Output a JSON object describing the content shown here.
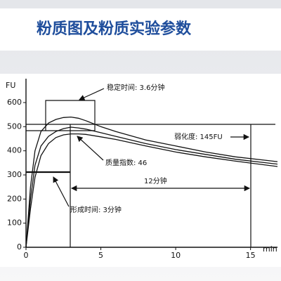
{
  "chart_data": {
    "type": "line",
    "title": "粉质图及粉质实验参数",
    "y_label": "FU",
    "x_label": "min",
    "x": [
      0,
      0.3,
      0.6,
      1,
      1.5,
      2,
      2.5,
      3,
      3.5,
      4,
      5,
      6,
      8,
      10,
      12,
      14,
      16.8
    ],
    "series": [
      {
        "color": "#111111",
        "values": [
          0,
          250,
          400,
          480,
          515,
          530,
          538,
          540,
          535,
          525,
          500,
          480,
          445,
          420,
          395,
          375,
          355
        ]
      },
      {
        "color": "#111111",
        "values": [
          0,
          200,
          340,
          420,
          460,
          480,
          492,
          498,
          495,
          490,
          475,
          460,
          430,
          405,
          385,
          365,
          345
        ]
      },
      {
        "color": "#111111",
        "values": [
          0,
          160,
          290,
          380,
          430,
          455,
          466,
          470,
          470,
          468,
          458,
          447,
          420,
          395,
          375,
          357,
          335
        ]
      }
    ],
    "xlim": [
      0,
      16.8
    ],
    "ylim": [
      0,
      600
    ],
    "xticks": [
      0,
      5,
      10,
      15
    ],
    "yticks": [
      0,
      100,
      200,
      300,
      400,
      500,
      600
    ],
    "grid": false,
    "annotations": [
      "稳定时间: 3.6分钟",
      "弱化度: 145FU",
      "质量指数: 46",
      "12分钟",
      "形成时间: 3分钟"
    ]
  }
}
